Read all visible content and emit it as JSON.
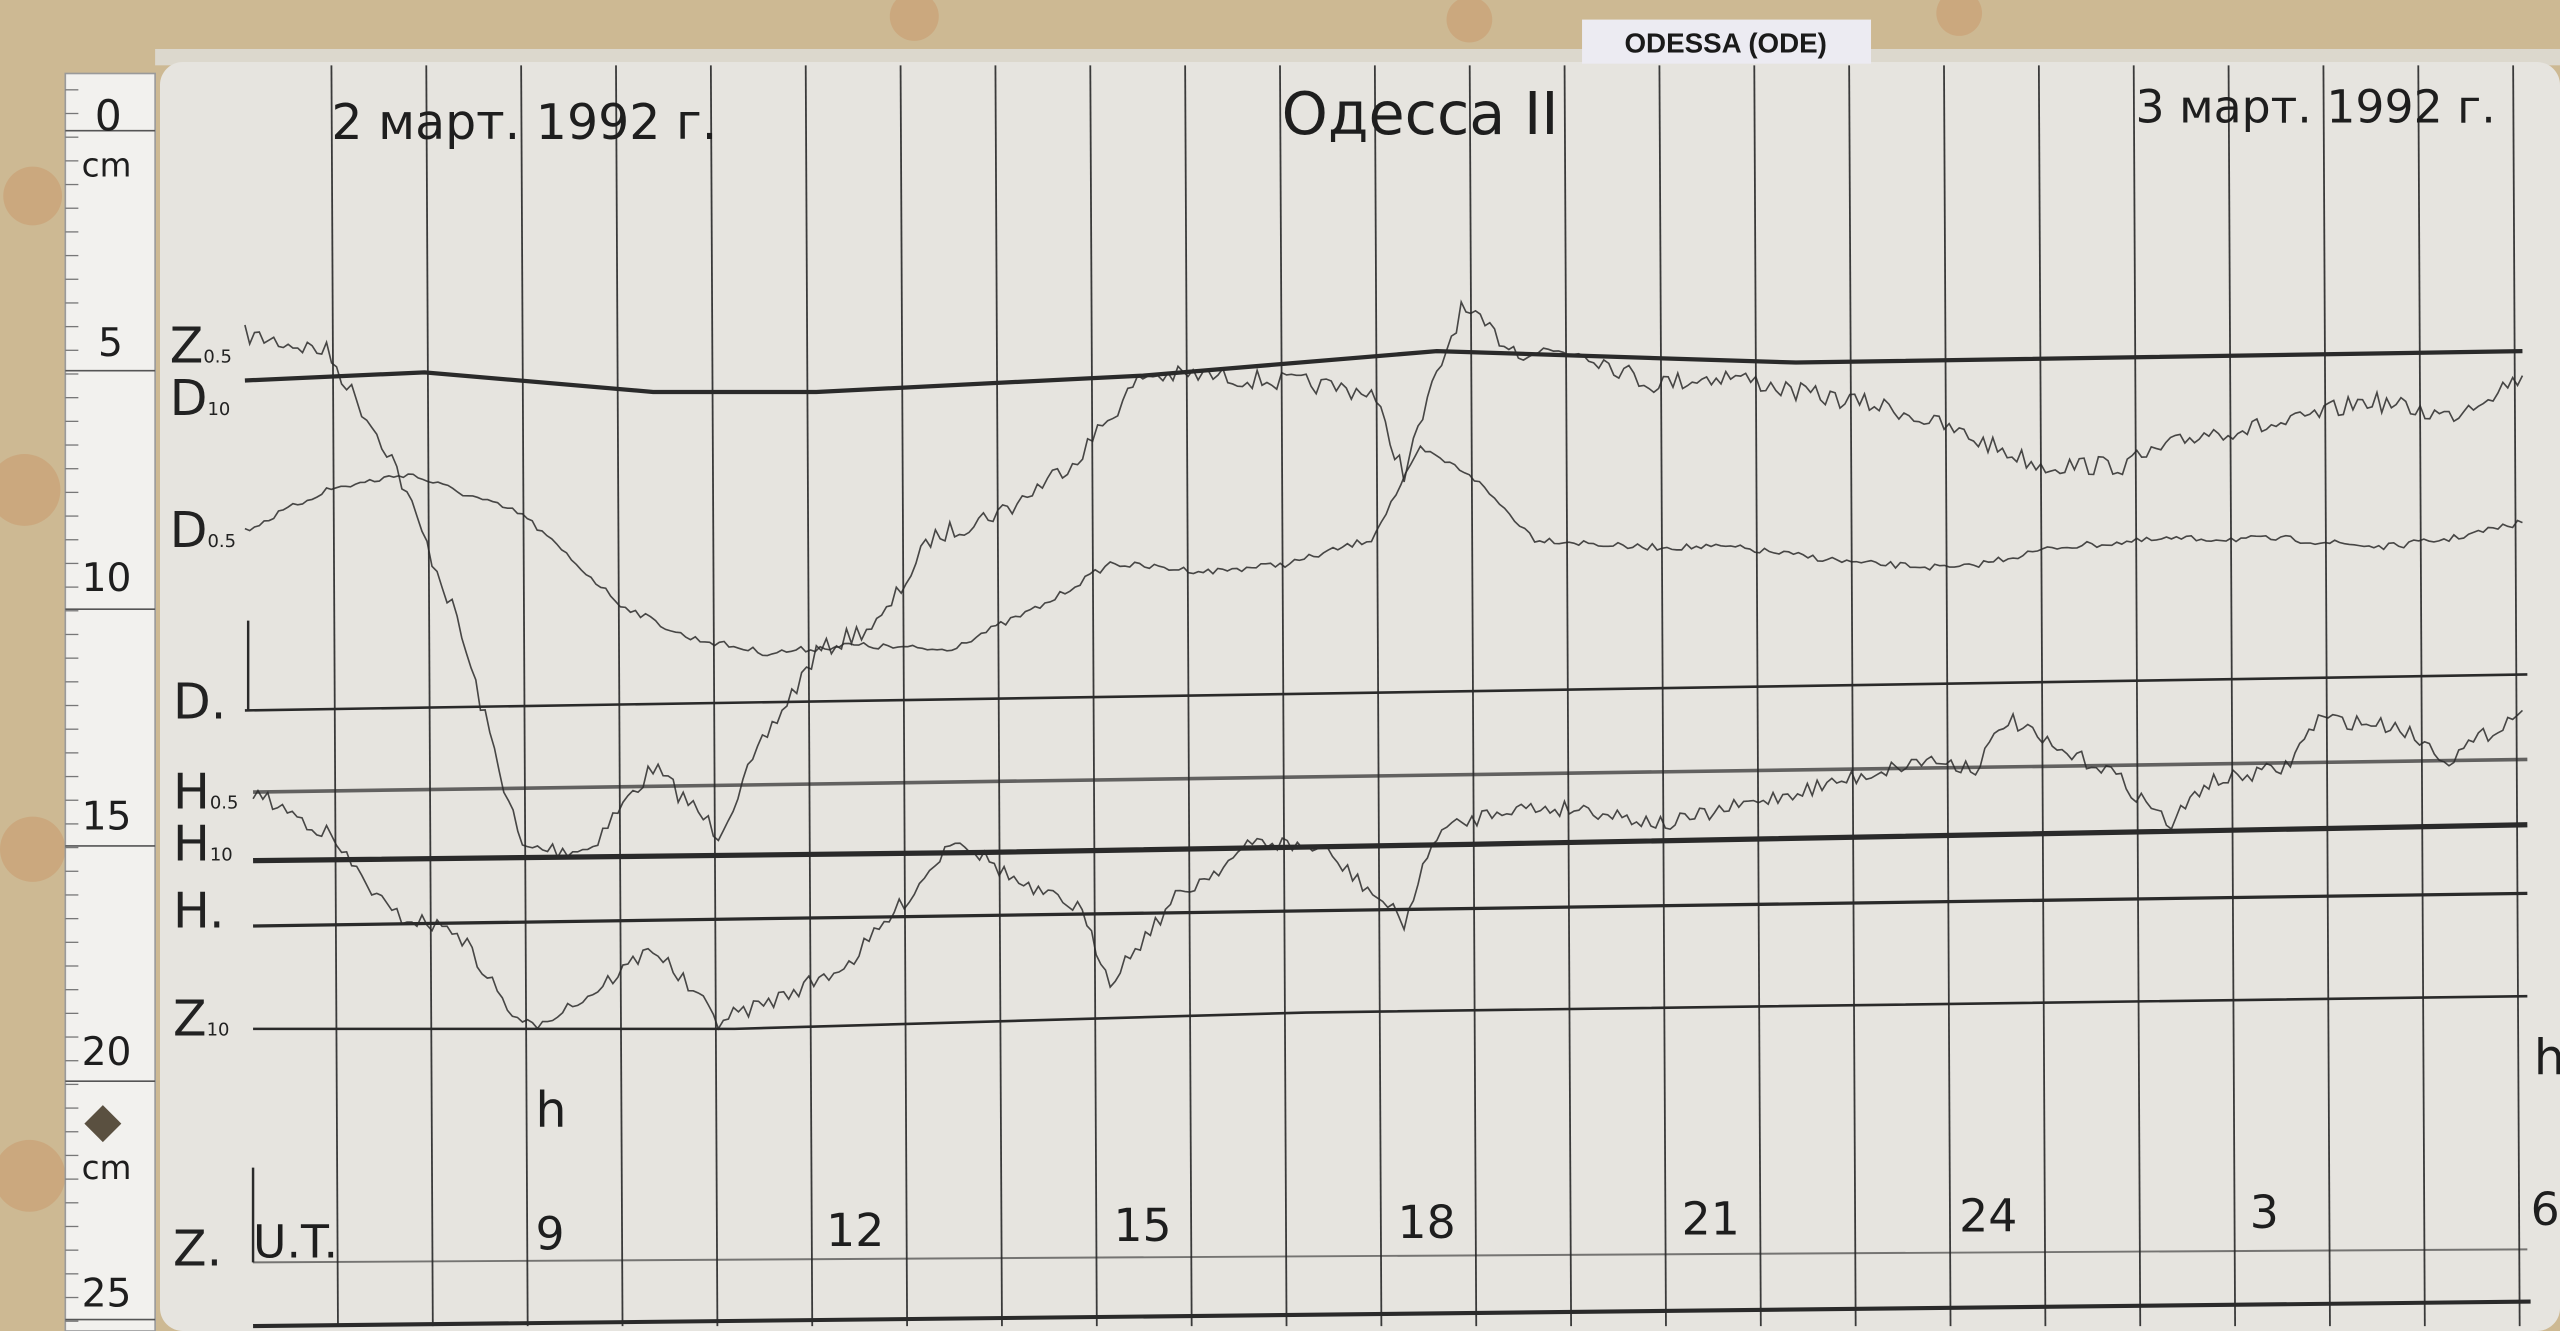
{
  "station_label": "ODESSA (ODE)",
  "chart": {
    "title": "Одесса II",
    "date_left": "2 март. 1992 г.",
    "date_right": "3 март. 1992 г.",
    "time_axis_label": "U.T.",
    "hour_labels": [
      "9",
      "12",
      "15",
      "18",
      "21",
      "24",
      "3",
      "6"
    ],
    "unit_marks": [
      "h",
      "h"
    ],
    "trace_labels": {
      "z05": "Z",
      "z05_sub": "0.5",
      "d10": "D",
      "d10_sub": "10",
      "d05": "D",
      "d05_sub": "0.5",
      "d0": "D.",
      "h05": "H",
      "h05_sub": "0.5",
      "h10": "H",
      "h10_sub": "10",
      "h0": "H.",
      "z10": "Z",
      "z10_sub": "10",
      "z0": "Z."
    }
  },
  "ruler": {
    "top_label": "0",
    "unit": "cm",
    "marks": [
      "5",
      "10",
      "15",
      "20",
      "25"
    ],
    "bottom_unit": "cm"
  },
  "colors": {
    "wall": "#cdb993",
    "paper": "#e6e4df",
    "ink": "#2a2a2a"
  }
}
